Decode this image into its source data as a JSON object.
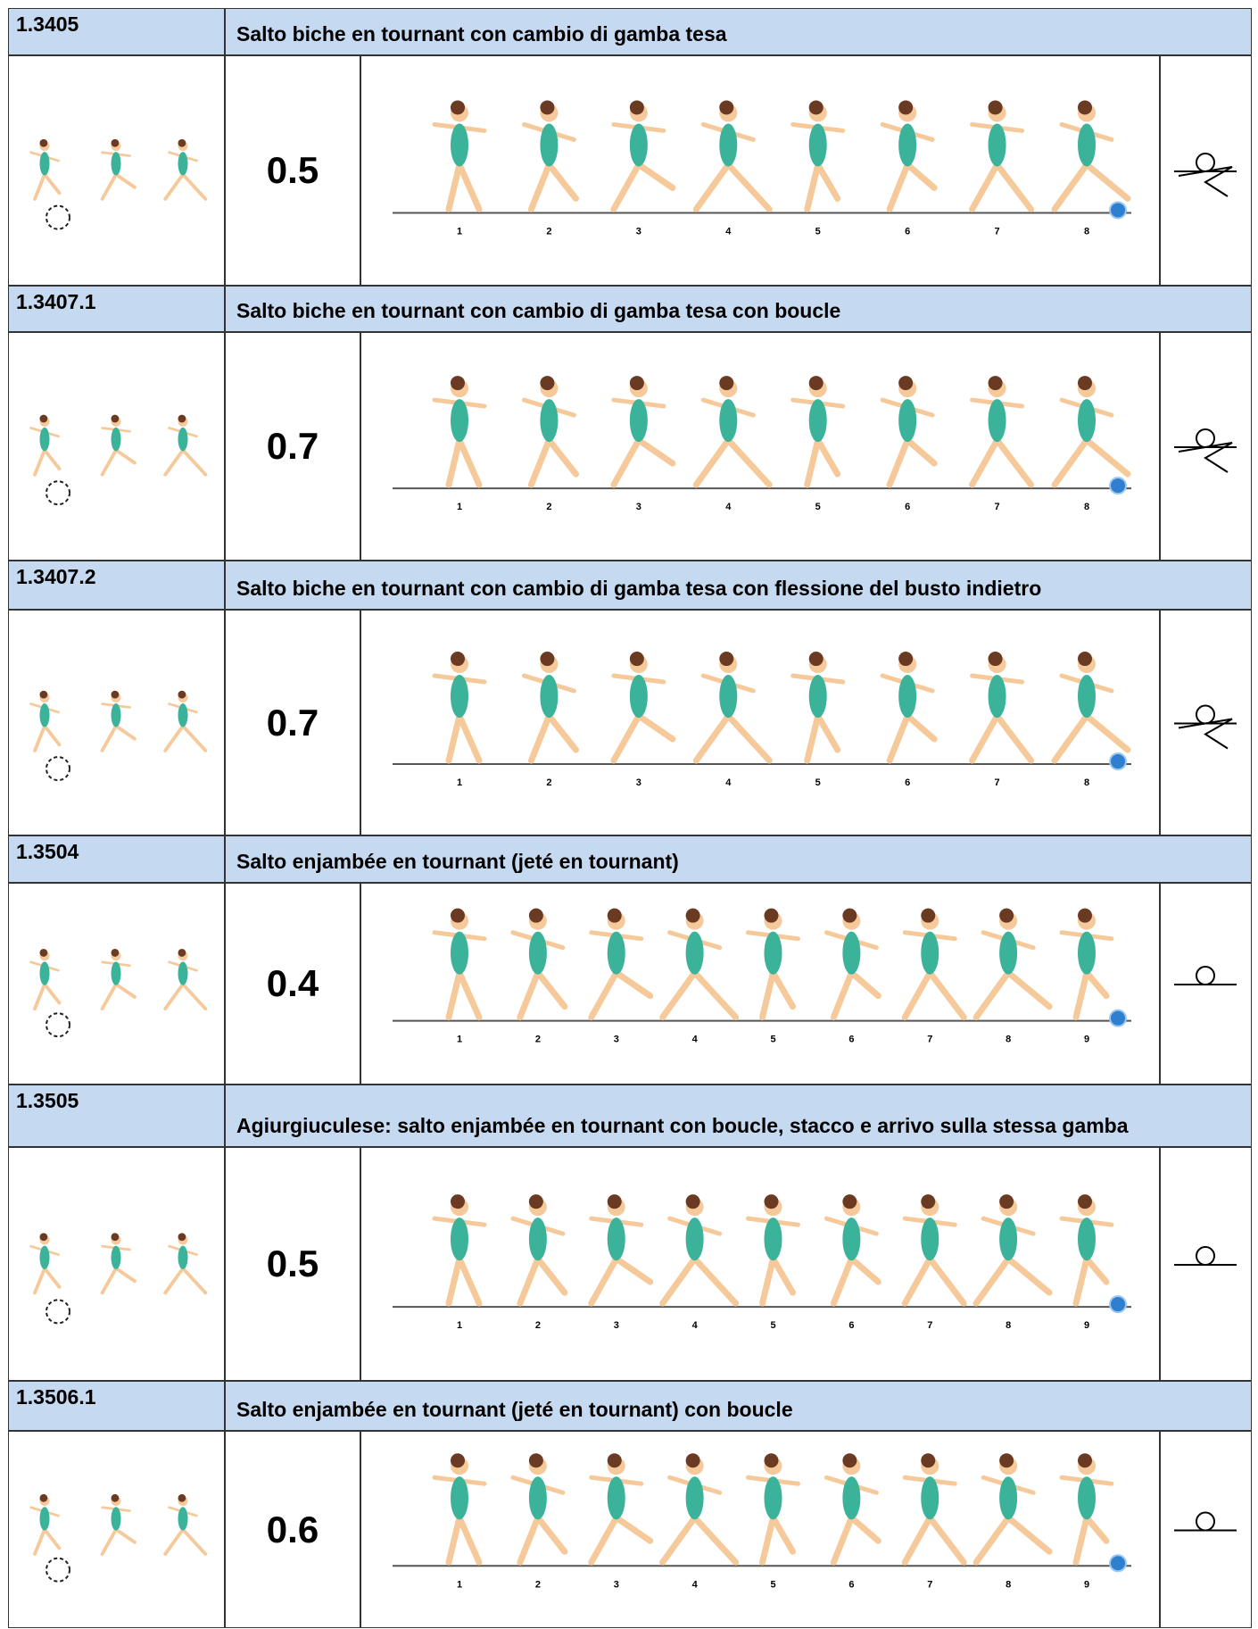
{
  "elements": [
    {
      "code": "1.3405",
      "name": "Salto biche en tournant con cambio di gamba tesa",
      "value": "0.5",
      "steps": [
        1,
        2,
        3,
        4,
        5,
        6,
        7,
        8
      ]
    },
    {
      "code": "1.3407.1",
      "name": "Salto biche en tournant con cambio di gamba tesa con boucle",
      "value": "0.7",
      "steps": [
        1,
        2,
        3,
        4,
        5,
        6,
        7,
        8
      ]
    },
    {
      "code": "1.3407.2",
      "name": "Salto biche en tournant con cambio di gamba tesa con flessione del busto indietro",
      "value": "0.7",
      "steps": [
        1,
        2,
        3,
        4,
        5,
        6,
        7,
        8
      ]
    },
    {
      "code": "1.3504",
      "name": "Salto enjambée en tournant (jeté en tournant)",
      "value": "0.4",
      "steps": [
        1,
        2,
        3,
        4,
        5,
        6,
        7,
        8,
        9
      ]
    },
    {
      "code": "1.3505",
      "name": "Agiurgiuculese: salto enjambée en tournant con boucle, stacco e arrivo sulla stessa gamba",
      "value": "0.5",
      "steps": [
        1,
        2,
        3,
        4,
        5,
        6,
        7,
        8,
        9
      ]
    },
    {
      "code": "1.3506.1",
      "name": "Salto enjambée en tournant (jeté en tournant) con boucle",
      "value": "0.6",
      "steps": [
        1,
        2,
        3,
        4,
        5,
        6,
        7,
        8,
        9
      ]
    }
  ]
}
